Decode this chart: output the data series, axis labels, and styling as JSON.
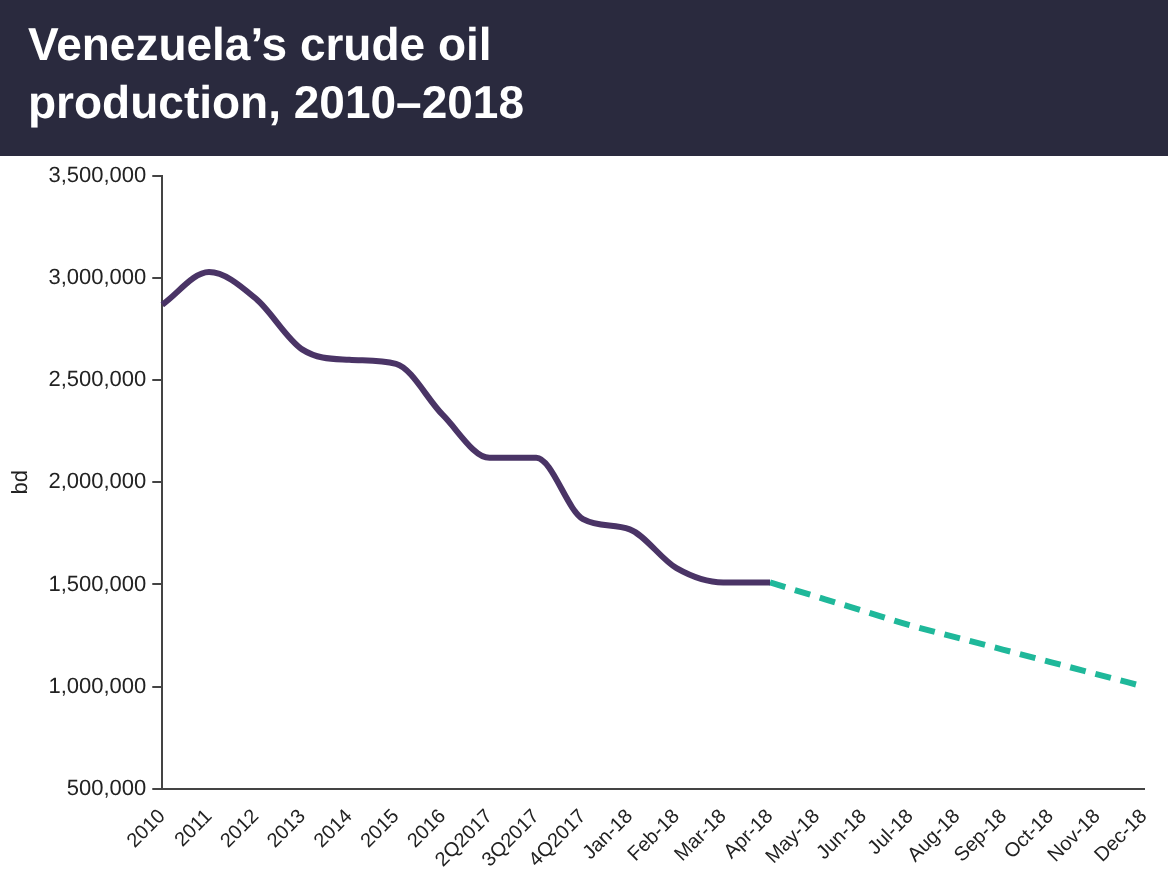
{
  "chart_data": {
    "type": "line",
    "title": "Venezuela’s crude oil production, 2010–2018",
    "ylabel": "bd",
    "categories": [
      "2010",
      "2011",
      "2012",
      "2013",
      "2014",
      "2015",
      "2016",
      "2Q2017",
      "3Q2017",
      "4Q2017",
      "Jan-18",
      "Feb-18",
      "Mar-18",
      "Apr-18",
      "May-18",
      "Jun-18",
      "Jul-18",
      "Aug-18",
      "Sep-18",
      "Oct-18",
      "Nov-18",
      "Dec-18"
    ],
    "series": [
      {
        "color": "#4a3466",
        "line_style": "solid",
        "values": [
          2870000,
          3030000,
          2900000,
          2650000,
          2600000,
          2580000,
          2330000,
          2120000,
          2120000,
          1820000,
          1770000,
          1580000,
          1510000,
          1510000,
          null,
          null,
          null,
          null,
          null,
          null,
          null,
          null
        ]
      },
      {
        "color": "#1fb89a",
        "line_style": "dashed",
        "values": [
          null,
          null,
          null,
          null,
          null,
          null,
          null,
          null,
          null,
          null,
          null,
          null,
          null,
          1510000,
          1440000,
          1370000,
          1300000,
          1240000,
          1180000,
          1120000,
          1060000,
          1000000
        ]
      }
    ],
    "ylim": [
      500000,
      3500000
    ],
    "yticks": [
      {
        "value": 500000,
        "label": "500,000"
      },
      {
        "value": 1000000,
        "label": "1,000,000"
      },
      {
        "value": 1500000,
        "label": "1,500,000"
      },
      {
        "value": 2000000,
        "label": "2,000,000"
      },
      {
        "value": 2500000,
        "label": "2,500,000"
      },
      {
        "value": 3000000,
        "label": "3,000,000"
      },
      {
        "value": 3500000,
        "label": "3,500,000"
      }
    ],
    "grid": false,
    "legend": false,
    "marker": "none"
  }
}
